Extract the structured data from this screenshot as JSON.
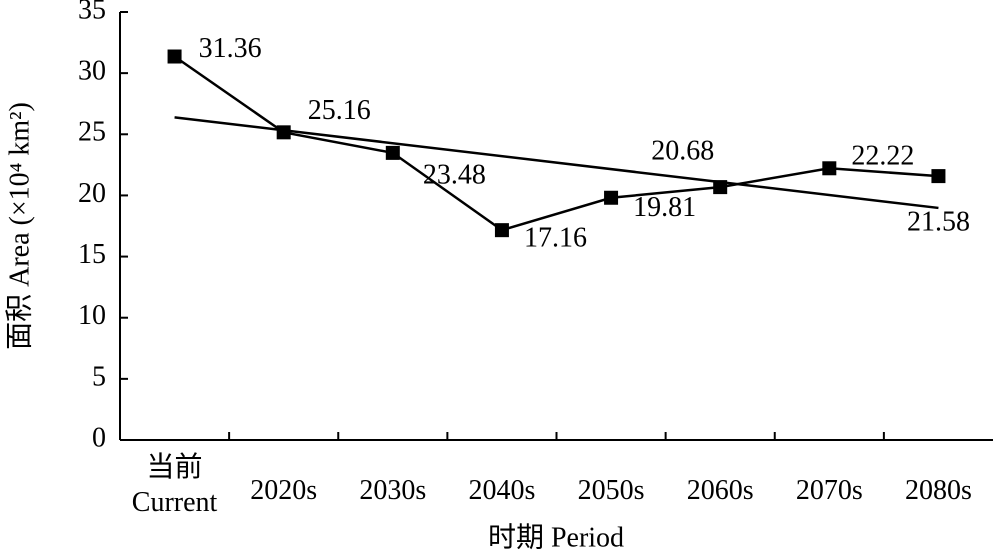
{
  "chart_data": {
    "type": "line",
    "x_label": "时期 Period",
    "y_label": "面积 Area (×10⁴ km²)",
    "categories": [
      "当前\nCurrent",
      "2020s",
      "2030s",
      "2040s",
      "2050s",
      "2060s",
      "2070s",
      "2080s"
    ],
    "series": [
      {
        "color": "#000000",
        "values": [
          31.36,
          25.16,
          23.48,
          17.16,
          19.81,
          20.68,
          22.22,
          21.58
        ]
      }
    ],
    "ylim": [
      0,
      35
    ],
    "yticks": [
      0,
      5,
      10,
      15,
      20,
      25,
      30,
      35
    ],
    "data_labels": true,
    "trendline": true,
    "grid": false
  }
}
